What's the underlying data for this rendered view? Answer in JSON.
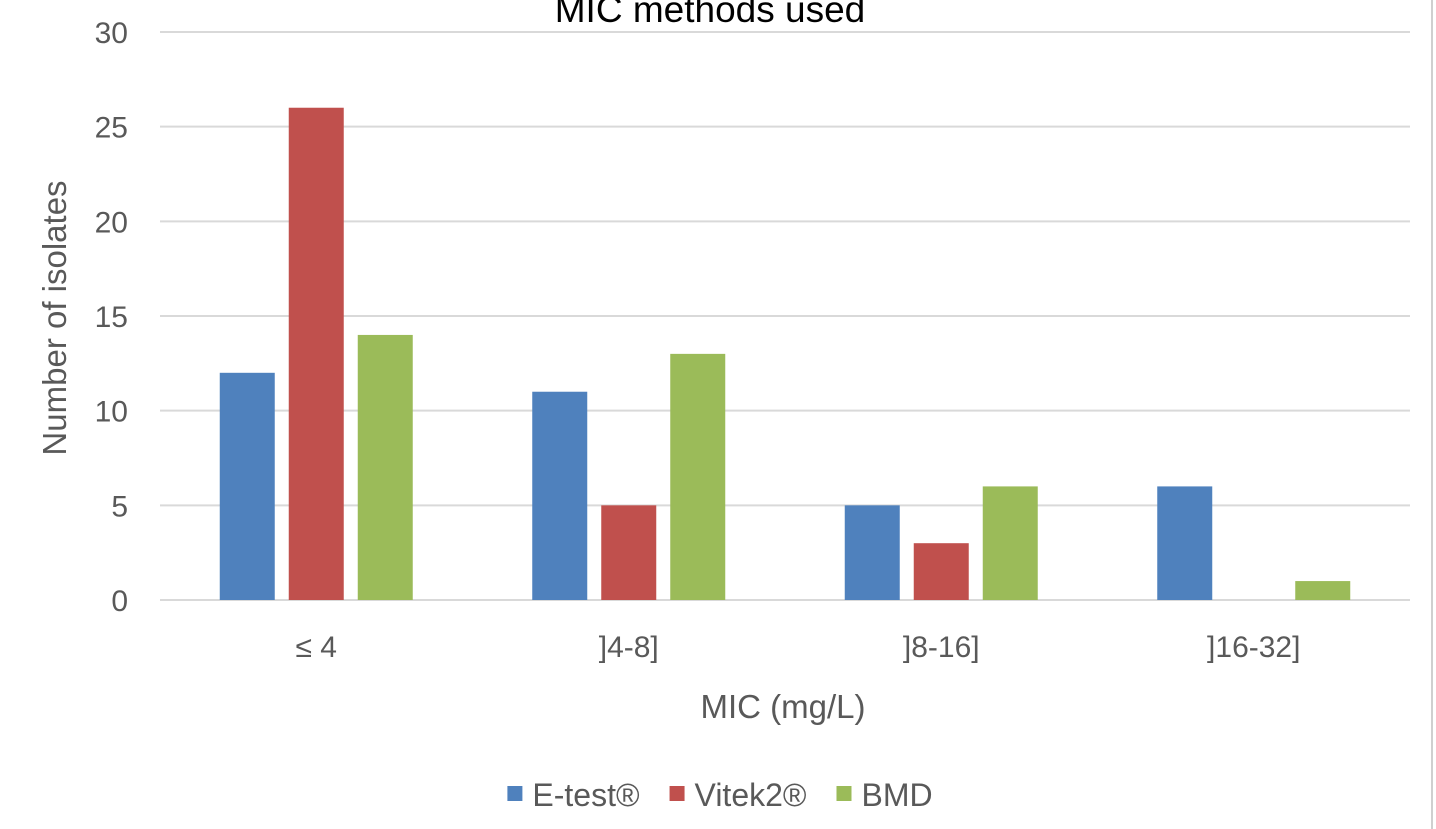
{
  "chart_data": {
    "type": "bar",
    "title": "MIC methods used",
    "xlabel": "MIC (mg/L)",
    "ylabel": "Number of isolates",
    "categories": [
      "≤ 4",
      "]4-8]",
      "]8-16]",
      "]16-32]"
    ],
    "series": [
      {
        "name": "E-test®",
        "color": "#4f81bd",
        "values": [
          12,
          11,
          5,
          6
        ]
      },
      {
        "name": "Vitek2®",
        "color": "#c0504d",
        "values": [
          26,
          5,
          3,
          0
        ]
      },
      {
        "name": "BMD",
        "color": "#9bbb59",
        "values": [
          14,
          13,
          6,
          1
        ]
      }
    ],
    "ylim": [
      0,
      30
    ],
    "yticks": [
      0,
      5,
      10,
      15,
      20,
      25,
      30
    ],
    "grid": true,
    "legend_position": "bottom"
  }
}
